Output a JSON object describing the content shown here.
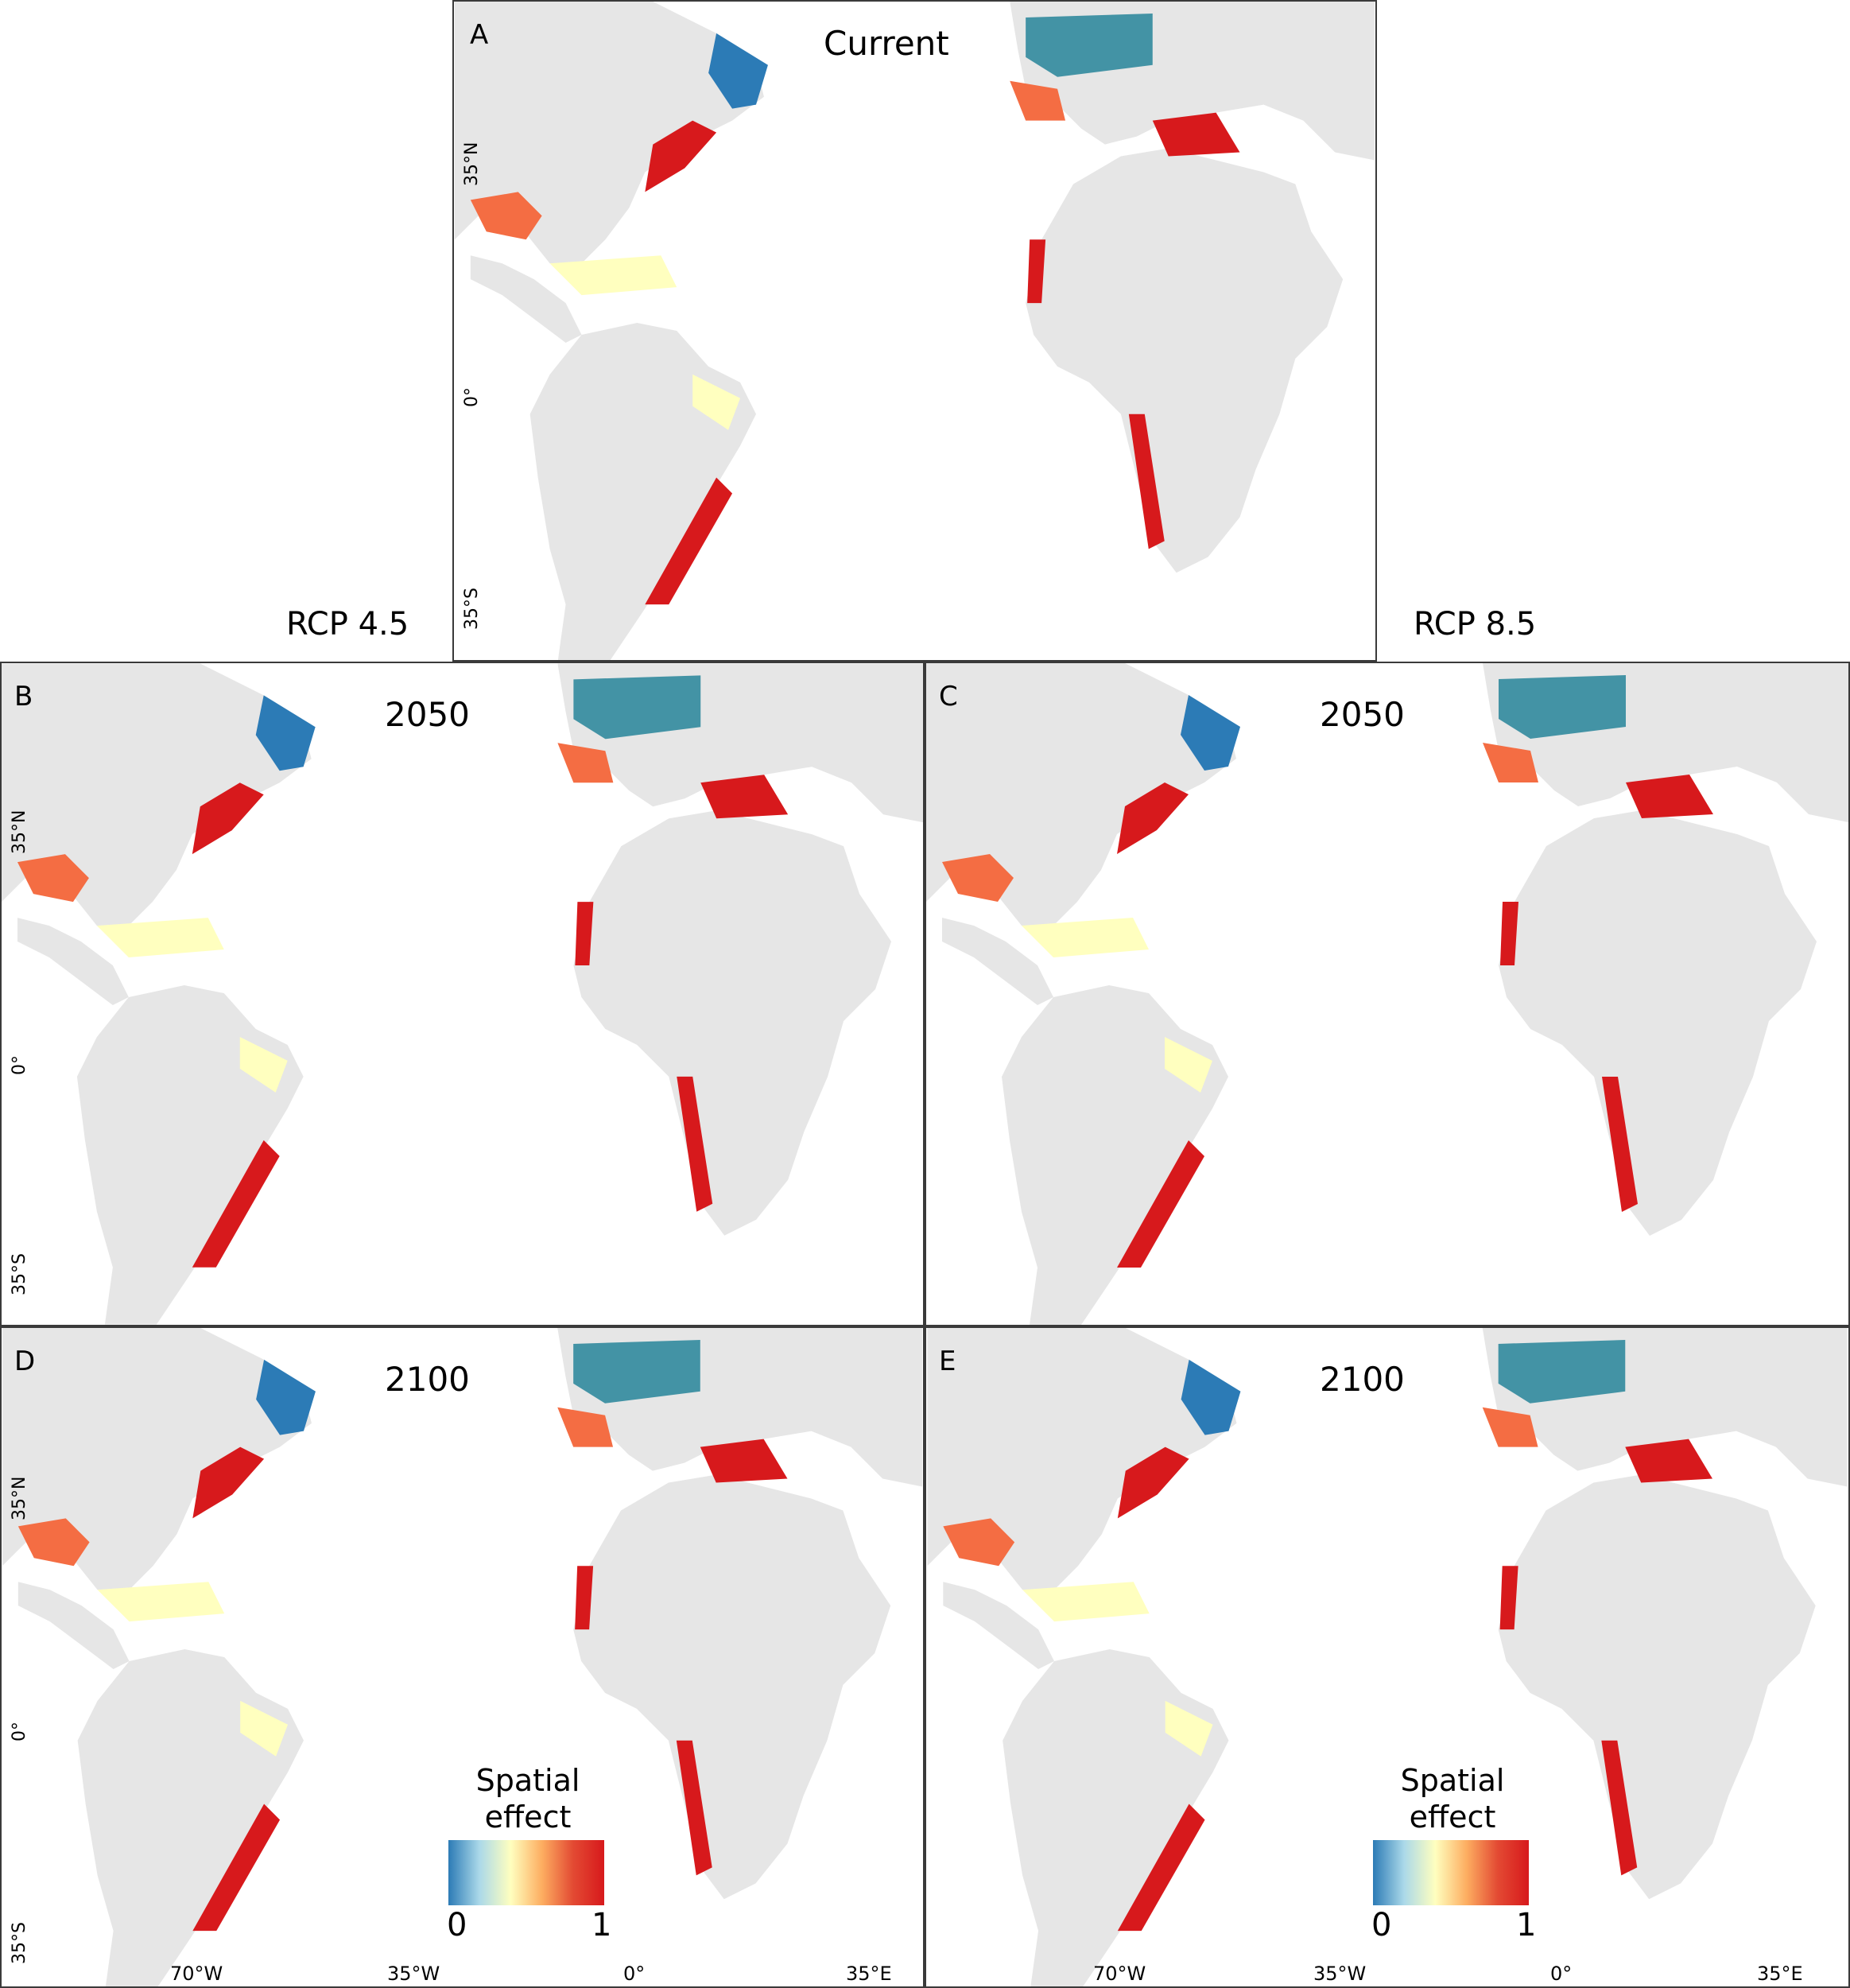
{
  "scenarios": {
    "left": "RCP 4.5",
    "right": "RCP 8.5"
  },
  "panels": [
    {
      "letter": "A",
      "title": "Current"
    },
    {
      "letter": "B",
      "title": "2050"
    },
    {
      "letter": "C",
      "title": "2050"
    },
    {
      "letter": "D",
      "title": "2100"
    },
    {
      "letter": "E",
      "title": "2100"
    }
  ],
  "axes": {
    "lat": [
      "35°N",
      "0°",
      "35°S"
    ],
    "lon": [
      "70°W",
      "35°W",
      "0°",
      "35°E"
    ]
  },
  "legend": {
    "title_line1": "Spatial",
    "title_line2": "effect",
    "min": "0",
    "max": "1"
  },
  "colors": {
    "land": "#e6e6e6",
    "ocean": "#ffffff",
    "effect_0": "#2c7bb6",
    "effect_mid": "#ffffbf",
    "effect_1": "#d7191c"
  }
}
